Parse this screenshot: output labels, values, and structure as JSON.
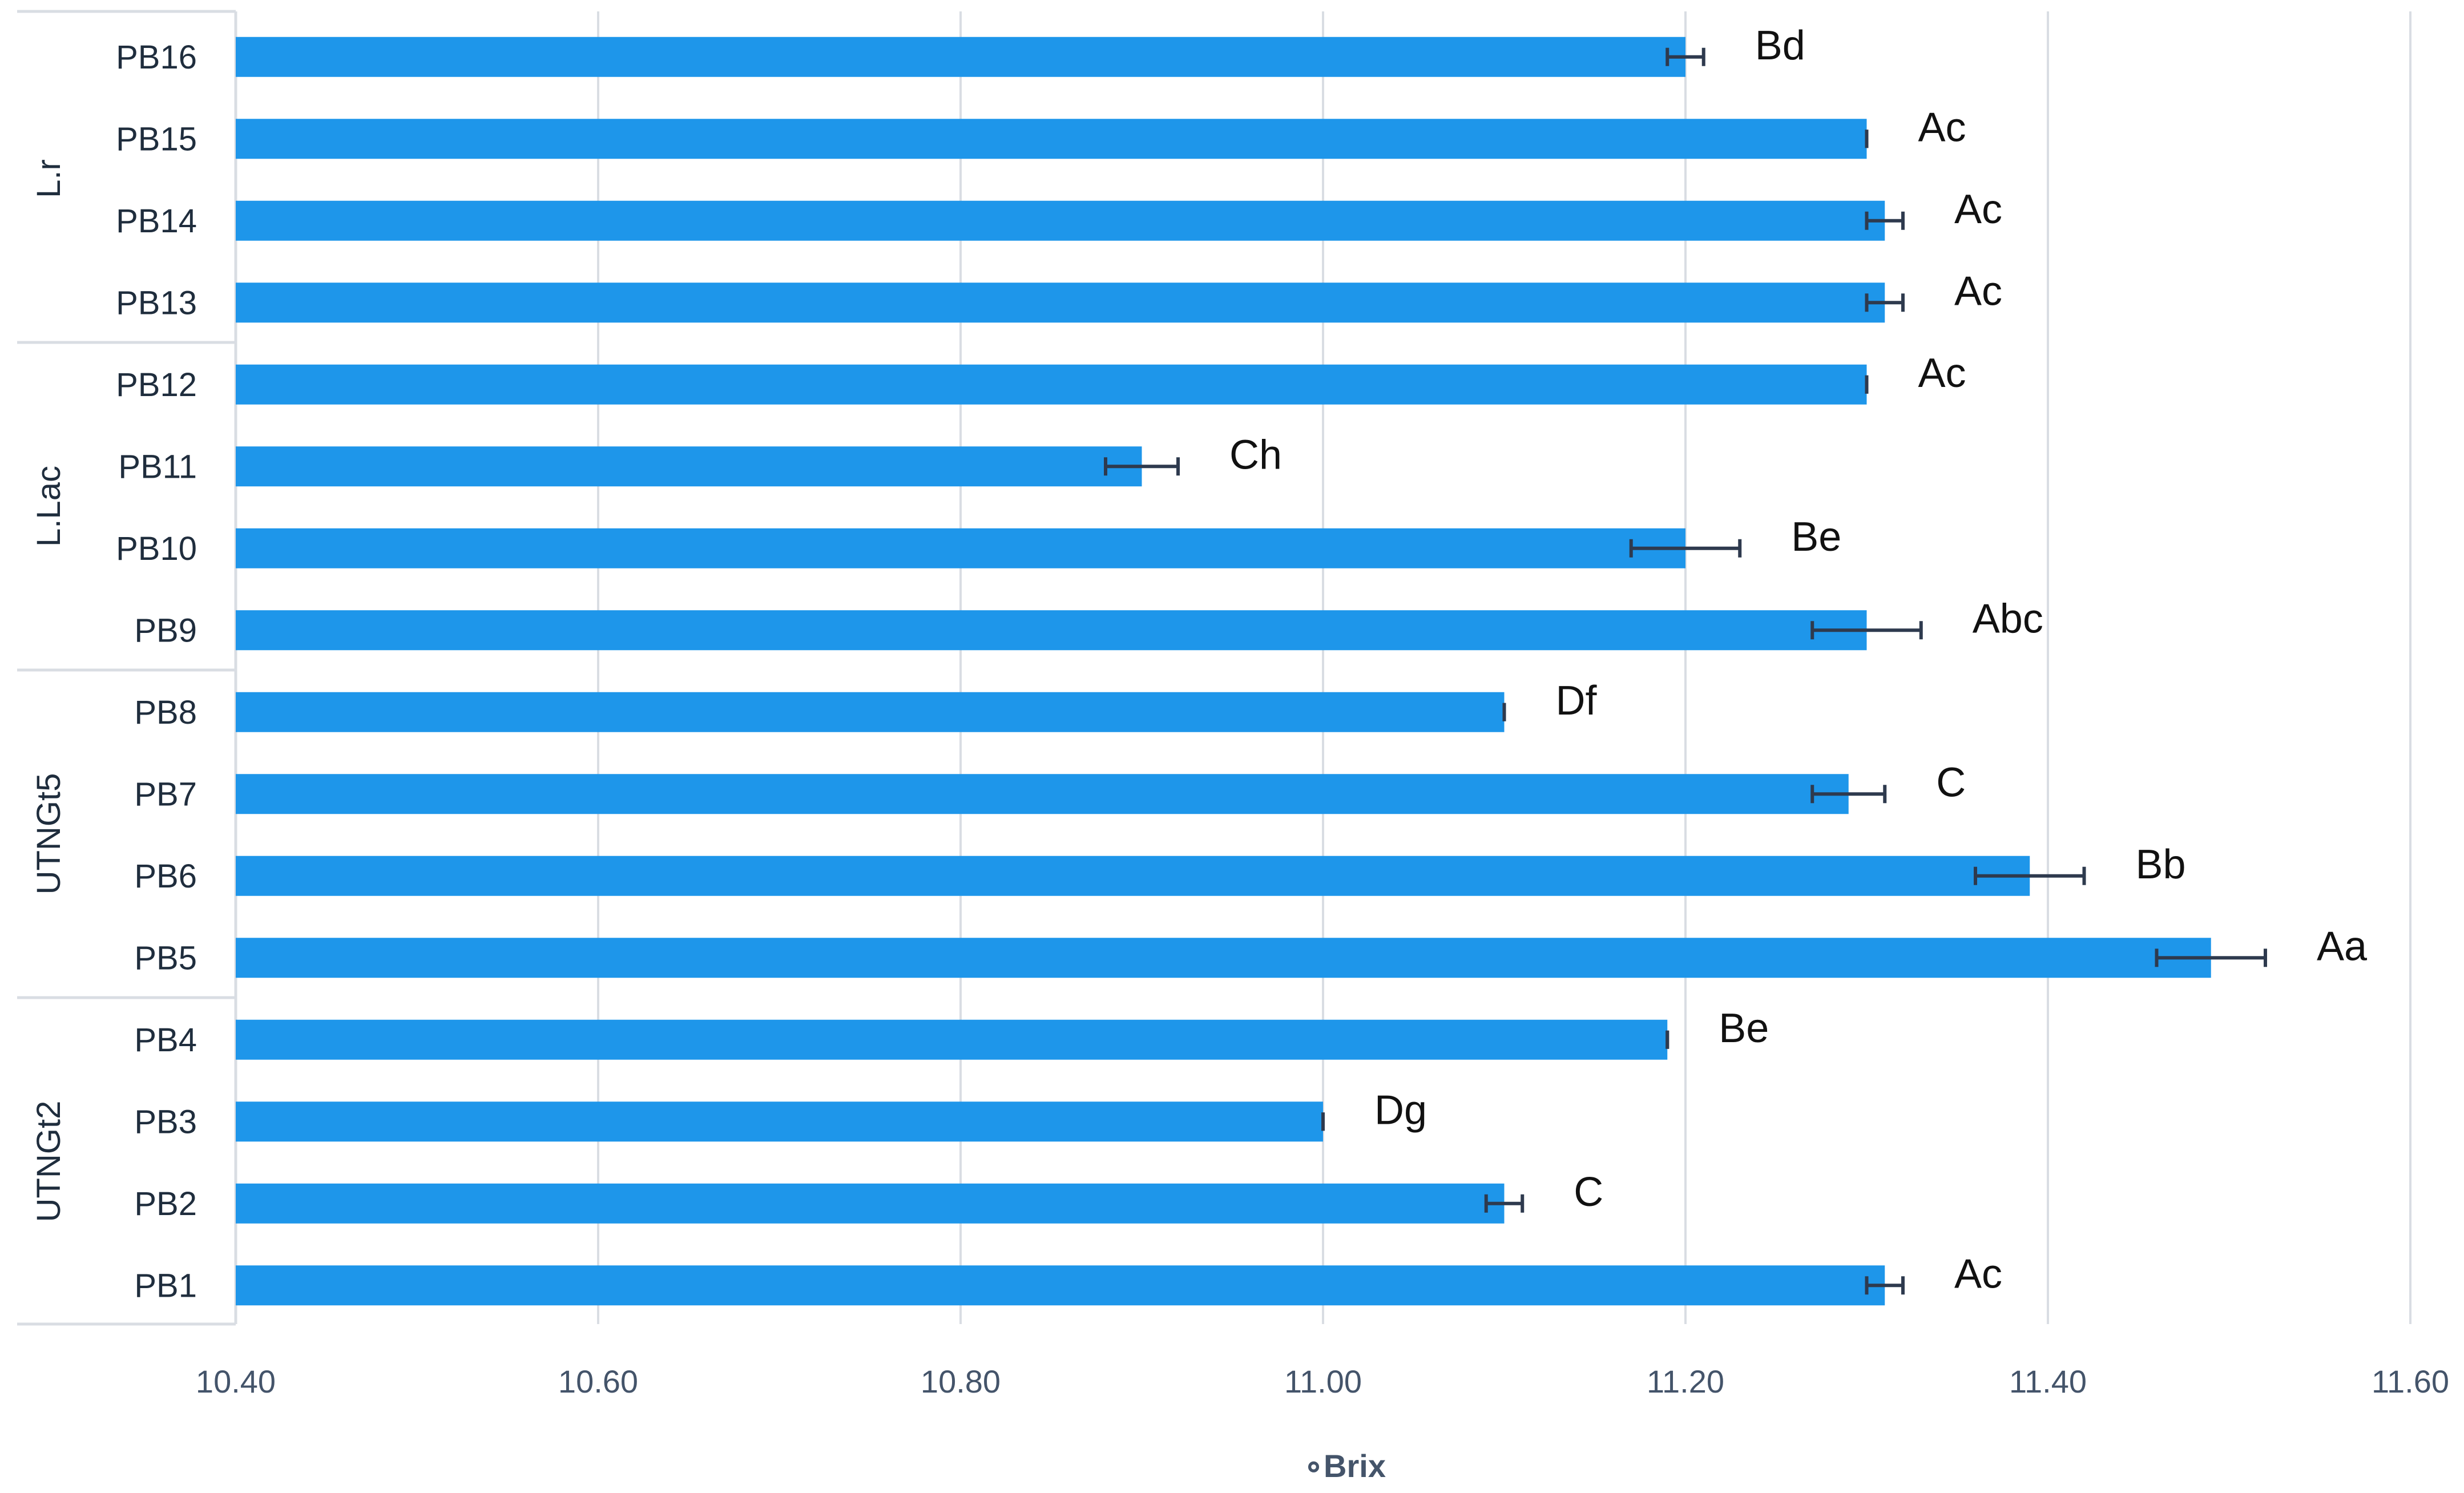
{
  "chart_data": {
    "type": "bar",
    "orientation": "horizontal",
    "title": "",
    "xlabel": "∘Brix",
    "ylabel": "",
    "xlim": [
      10.4,
      11.6
    ],
    "xticks": [
      "10.40",
      "10.60",
      "10.80",
      "11.00",
      "11.20",
      "11.40",
      "11.60"
    ],
    "grid": true,
    "bar_color": "#1e96ea",
    "groups": [
      {
        "name": "L.r",
        "categories": [
          "PB16",
          "PB15",
          "PB14",
          "PB13"
        ]
      },
      {
        "name": "L.Lac",
        "categories": [
          "PB12",
          "PB11",
          "PB10",
          "PB9"
        ]
      },
      {
        "name": "UTNGt5",
        "categories": [
          "PB8",
          "PB7",
          "PB6",
          "PB5"
        ]
      },
      {
        "name": "UTNGt2",
        "categories": [
          "PB4",
          "PB3",
          "PB2",
          "PB1"
        ]
      }
    ],
    "categories": [
      "PB16",
      "PB15",
      "PB14",
      "PB13",
      "PB12",
      "PB11",
      "PB10",
      "PB9",
      "PB8",
      "PB7",
      "PB6",
      "PB5",
      "PB4",
      "PB3",
      "PB2",
      "PB1"
    ],
    "values": [
      11.2,
      11.3,
      11.31,
      11.31,
      11.3,
      10.9,
      11.2,
      11.3,
      11.1,
      11.29,
      11.39,
      11.49,
      11.19,
      11.0,
      11.1,
      11.31
    ],
    "errors": [
      0.01,
      0.0,
      0.01,
      0.01,
      0.0,
      0.02,
      0.03,
      0.03,
      0.0,
      0.02,
      0.03,
      0.03,
      0.0,
      0.0,
      0.01,
      0.01
    ],
    "labels": [
      "Bd",
      "Ac",
      "Ac",
      "Ac",
      "Ac",
      "Ch",
      "Be",
      "Abc",
      "Df",
      "C",
      "Bb",
      "Aa",
      "Be",
      "Dg",
      "C",
      "Ac"
    ]
  }
}
